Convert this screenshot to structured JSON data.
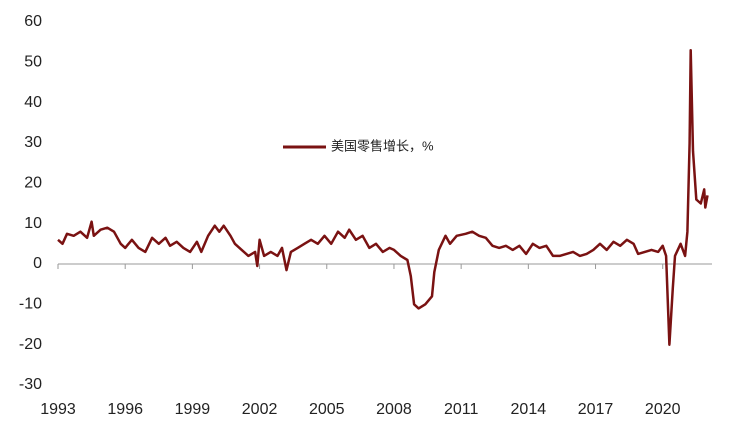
{
  "chart_data": {
    "type": "line",
    "legend": "美国零售增长，%",
    "color": "#7a1212",
    "x": [
      1993.0,
      1993.2,
      1993.4,
      1993.7,
      1994.0,
      1994.3,
      1994.5,
      1994.6,
      1994.9,
      1995.2,
      1995.5,
      1995.8,
      1996.0,
      1996.3,
      1996.6,
      1996.9,
      1997.2,
      1997.5,
      1997.8,
      1998.0,
      1998.3,
      1998.6,
      1998.9,
      1999.2,
      1999.4,
      1999.7,
      2000.0,
      2000.2,
      2000.4,
      2000.7,
      2000.9,
      2001.2,
      2001.5,
      2001.8,
      2001.9,
      2002.0,
      2002.2,
      2002.5,
      2002.8,
      2003.0,
      2003.2,
      2003.4,
      2003.7,
      2004.0,
      2004.3,
      2004.6,
      2004.9,
      2005.2,
      2005.5,
      2005.8,
      2006.0,
      2006.3,
      2006.6,
      2006.9,
      2007.2,
      2007.5,
      2007.8,
      2008.0,
      2008.3,
      2008.6,
      2008.75,
      2008.9,
      2009.1,
      2009.4,
      2009.7,
      2009.8,
      2010.0,
      2010.3,
      2010.5,
      2010.8,
      2011.2,
      2011.5,
      2011.8,
      2012.1,
      2012.4,
      2012.7,
      2013.0,
      2013.3,
      2013.6,
      2013.9,
      2014.2,
      2014.5,
      2014.8,
      2015.1,
      2015.4,
      2015.7,
      2016.0,
      2016.3,
      2016.6,
      2016.9,
      2017.2,
      2017.5,
      2017.8,
      2018.1,
      2018.4,
      2018.7,
      2018.9,
      2019.2,
      2019.5,
      2019.8,
      2020.0,
      2020.15,
      2020.3,
      2020.45,
      2020.55,
      2020.8,
      2021.0,
      2021.1,
      2021.2,
      2021.25,
      2021.35,
      2021.5,
      2021.7,
      2021.85,
      2021.9,
      2022.0
    ],
    "values": [
      6,
      5,
      7.5,
      7,
      8,
      6.5,
      10.5,
      7,
      8.5,
      9,
      8,
      5,
      4,
      6,
      4,
      3,
      6.5,
      5,
      6.5,
      4.5,
      5.5,
      4,
      3,
      5.5,
      3,
      7,
      9.5,
      8,
      9.5,
      7,
      5,
      3.5,
      2,
      3,
      -0.5,
      6,
      2,
      3,
      2,
      4,
      -1.5,
      3,
      4,
      5,
      6,
      5,
      7,
      5,
      8,
      6.5,
      8.5,
      6,
      7,
      4,
      5,
      3,
      4,
      3.5,
      2,
      1,
      -3,
      -10,
      -11,
      -10,
      -8,
      -2,
      3.5,
      7,
      5,
      7,
      7.5,
      8,
      7,
      6.5,
      4.5,
      4,
      4.5,
      3.5,
      4.5,
      2.5,
      5,
      4,
      4.5,
      2,
      2,
      2.5,
      3,
      2,
      2.5,
      3.5,
      5,
      3.5,
      5.5,
      4.5,
      6,
      5,
      2.5,
      3,
      3.5,
      3,
      4.5,
      2,
      -20,
      -6,
      2,
      5,
      2,
      8,
      30,
      53,
      28,
      16,
      15,
      18.5,
      14,
      17
    ],
    "xlim": [
      1993,
      2022.2
    ],
    "xticks": [
      1993,
      1996,
      1999,
      2002,
      2005,
      2008,
      2011,
      2014,
      2017,
      2020
    ],
    "ylim": [
      -30,
      60
    ],
    "yticks": [
      -30,
      -20,
      -10,
      0,
      10,
      20,
      30,
      40,
      50,
      60
    ]
  }
}
